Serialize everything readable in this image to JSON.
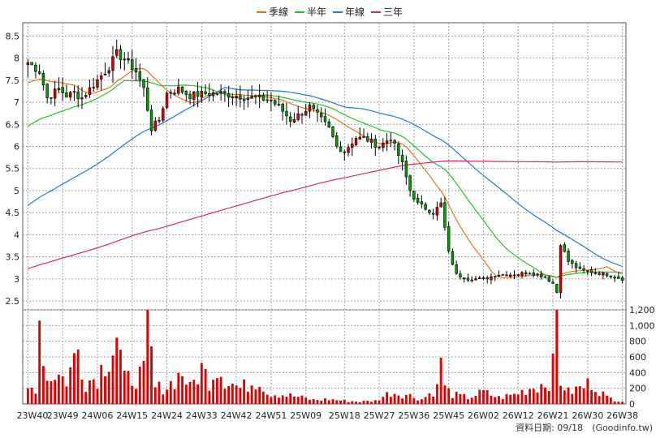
{
  "chart_data": {
    "type": "candlestick-with-volume",
    "legend": [
      {
        "name": "季線",
        "color": "#e8741a"
      },
      {
        "name": "半年",
        "color": "#22c422"
      },
      {
        "name": "年線",
        "color": "#1e78d2"
      },
      {
        "name": "三年",
        "color": "#d2286e"
      }
    ],
    "x_tick_labels": [
      "23W40",
      "23W49",
      "24W06",
      "24W15",
      "24W24",
      "24W33",
      "24W42",
      "24W51",
      "25W09",
      "25W18",
      "25W27",
      "25W36",
      "25W45",
      "26W02",
      "26W12",
      "26W21",
      "26W30",
      "26W38"
    ],
    "price_axis": {
      "min": 2.3,
      "max": 8.8,
      "ticks": [
        2.5,
        3,
        3.5,
        4,
        4.5,
        5,
        5.5,
        6,
        6.5,
        7,
        7.5,
        8,
        8.5
      ]
    },
    "volume_axis": {
      "min": 0,
      "max": 1200,
      "ticks": [
        0,
        200,
        400,
        600,
        800,
        1000,
        1200
      ],
      "tick_labels": [
        "0",
        "200",
        "400",
        "600",
        "800",
        "1,000",
        "1,200"
      ]
    },
    "grid": true,
    "weeks": 155,
    "close_anchors": [
      [
        0,
        7.9
      ],
      [
        3,
        7.7
      ],
      [
        5,
        7.1
      ],
      [
        8,
        7.3
      ],
      [
        10,
        7.15
      ],
      [
        12,
        7.2
      ],
      [
        14,
        7.1
      ],
      [
        18,
        7.5
      ],
      [
        21,
        7.8
      ],
      [
        23,
        8.1
      ],
      [
        26,
        7.9
      ],
      [
        28,
        7.7
      ],
      [
        30,
        7.3
      ],
      [
        32,
        6.4
      ],
      [
        34,
        6.6
      ],
      [
        36,
        7.2
      ],
      [
        39,
        7.3
      ],
      [
        42,
        7.15
      ],
      [
        46,
        7.2
      ],
      [
        50,
        7.2
      ],
      [
        54,
        7.15
      ],
      [
        58,
        7.1
      ],
      [
        63,
        7.05
      ],
      [
        66,
        6.8
      ],
      [
        68,
        6.6
      ],
      [
        70,
        6.7
      ],
      [
        73,
        6.9
      ],
      [
        76,
        6.6
      ],
      [
        78,
        6.4
      ],
      [
        80,
        6.0
      ],
      [
        82,
        5.9
      ],
      [
        85,
        6.2
      ],
      [
        88,
        6.15
      ],
      [
        91,
        6.0
      ],
      [
        94,
        6.2
      ],
      [
        97,
        5.6
      ],
      [
        99,
        5.0
      ],
      [
        101,
        4.7
      ],
      [
        103,
        4.6
      ],
      [
        105,
        4.5
      ],
      [
        107,
        4.7
      ],
      [
        109,
        3.6
      ],
      [
        111,
        3.1
      ],
      [
        114,
        3.0
      ],
      [
        118,
        3.0
      ],
      [
        122,
        3.1
      ],
      [
        126,
        3.1
      ],
      [
        130,
        3.15
      ],
      [
        134,
        3.05
      ],
      [
        136,
        2.9
      ],
      [
        137,
        2.7
      ],
      [
        138,
        3.8
      ],
      [
        140,
        3.4
      ],
      [
        143,
        3.2
      ],
      [
        147,
        3.15
      ],
      [
        150,
        3.1
      ],
      [
        154,
        3.0
      ]
    ],
    "volume_anchors": [
      [
        0,
        180
      ],
      [
        2,
        220
      ],
      [
        3,
        1100
      ],
      [
        5,
        300
      ],
      [
        7,
        400
      ],
      [
        10,
        300
      ],
      [
        13,
        700
      ],
      [
        15,
        280
      ],
      [
        18,
        350
      ],
      [
        22,
        750
      ],
      [
        23,
        900
      ],
      [
        25,
        300
      ],
      [
        30,
        380
      ],
      [
        31,
        1000
      ],
      [
        33,
        200
      ],
      [
        36,
        220
      ],
      [
        40,
        400
      ],
      [
        42,
        200
      ],
      [
        45,
        450
      ],
      [
        47,
        300
      ],
      [
        49,
        500
      ],
      [
        51,
        320
      ],
      [
        55,
        200
      ],
      [
        60,
        320
      ],
      [
        62,
        140
      ],
      [
        66,
        120
      ],
      [
        70,
        90
      ],
      [
        74,
        50
      ],
      [
        78,
        60
      ],
      [
        82,
        40
      ],
      [
        86,
        30
      ],
      [
        90,
        40
      ],
      [
        94,
        150
      ],
      [
        98,
        120
      ],
      [
        102,
        60
      ],
      [
        106,
        200
      ],
      [
        107,
        630
      ],
      [
        108,
        200
      ],
      [
        110,
        120
      ],
      [
        114,
        80
      ],
      [
        118,
        150
      ],
      [
        122,
        80
      ],
      [
        126,
        120
      ],
      [
        130,
        200
      ],
      [
        133,
        250
      ],
      [
        135,
        300
      ],
      [
        136,
        450
      ],
      [
        137,
        1250
      ],
      [
        138,
        300
      ],
      [
        140,
        150
      ],
      [
        144,
        220
      ],
      [
        146,
        280
      ],
      [
        150,
        80
      ],
      [
        154,
        40
      ]
    ]
  },
  "footer": {
    "label": "資料日期: 09/18",
    "source": "(Goodinfo.tw)"
  }
}
